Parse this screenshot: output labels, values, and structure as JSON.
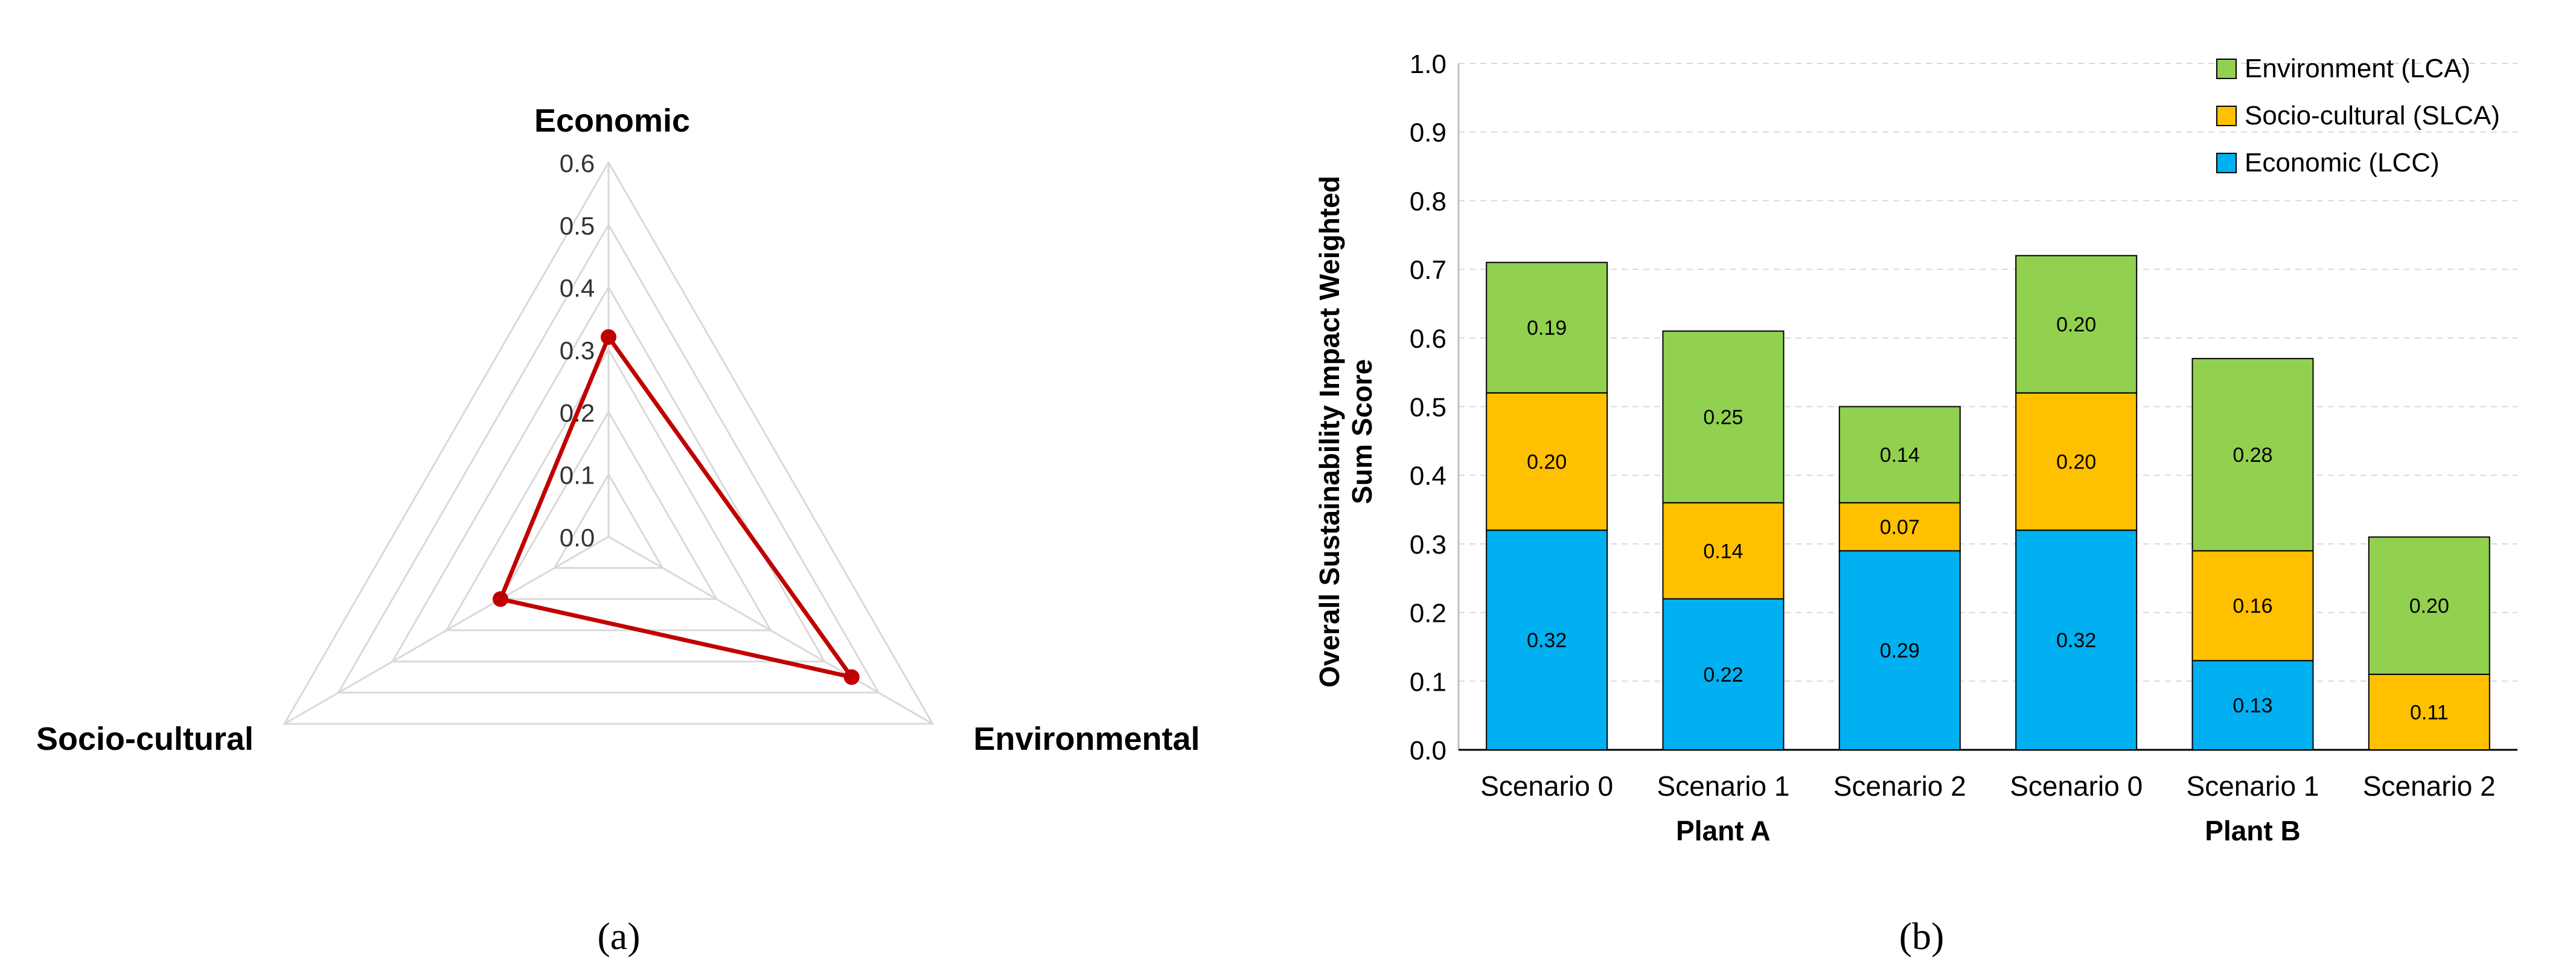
{
  "chart_data": [
    {
      "panel_label": "(a)",
      "type": "radar",
      "axes": [
        "Economic",
        "Environmental",
        "Socio-cultural"
      ],
      "values": [
        0.32,
        0.45,
        0.2
      ],
      "rlim": [
        0.0,
        0.6
      ],
      "ticks": [
        "0.0",
        "0.1",
        "0.2",
        "0.3",
        "0.4",
        "0.5",
        "0.6"
      ],
      "grid": true,
      "series_color": "#c00000",
      "grid_color": "#d9d9d9"
    },
    {
      "panel_label": "(b)",
      "type": "bar",
      "stacked": true,
      "categories": [
        "Scenario 0",
        "Scenario 1",
        "Scenario 2",
        "Scenario 0",
        "Scenario 1",
        "Scenario 2"
      ],
      "groups": [
        {
          "label": "Plant A",
          "categories_index": [
            0,
            1,
            2
          ]
        },
        {
          "label": "Plant B",
          "categories_index": [
            3,
            4,
            5
          ]
        }
      ],
      "series": [
        {
          "name": "Economic (LCC)",
          "color": "#00b0f0",
          "values": [
            0.32,
            0.22,
            0.29,
            0.32,
            0.13,
            0.0
          ],
          "labels": [
            "0.32",
            "0.22",
            "0.29",
            "0.32",
            "0.13",
            ""
          ]
        },
        {
          "name": "Socio-cultural (SLCA)",
          "color": "#ffc000",
          "values": [
            0.2,
            0.14,
            0.07,
            0.2,
            0.16,
            0.11
          ],
          "labels": [
            "0.20",
            "0.14",
            "0.07",
            "0.20",
            "0.16",
            "0.11"
          ]
        },
        {
          "name": "Environment (LCA)",
          "color": "#92d050",
          "values": [
            0.19,
            0.25,
            0.14,
            0.2,
            0.28,
            0.2
          ],
          "labels": [
            "0.19",
            "0.25",
            "0.14",
            "0.20",
            "0.28",
            "0.20"
          ]
        }
      ],
      "legend_order": [
        "Environment (LCA)",
        "Socio-cultural (SLCA)",
        "Economic (LCC)"
      ],
      "ylabel_lines": [
        "Overall Sustainability Impact Weighted",
        "Sum Score"
      ],
      "ylim": [
        0.0,
        1.0
      ],
      "yticks": [
        "0.0",
        "0.1",
        "0.2",
        "0.3",
        "0.4",
        "0.5",
        "0.6",
        "0.7",
        "0.8",
        "0.9",
        "1.0"
      ],
      "grid": true,
      "legend_position": "top-right"
    }
  ]
}
